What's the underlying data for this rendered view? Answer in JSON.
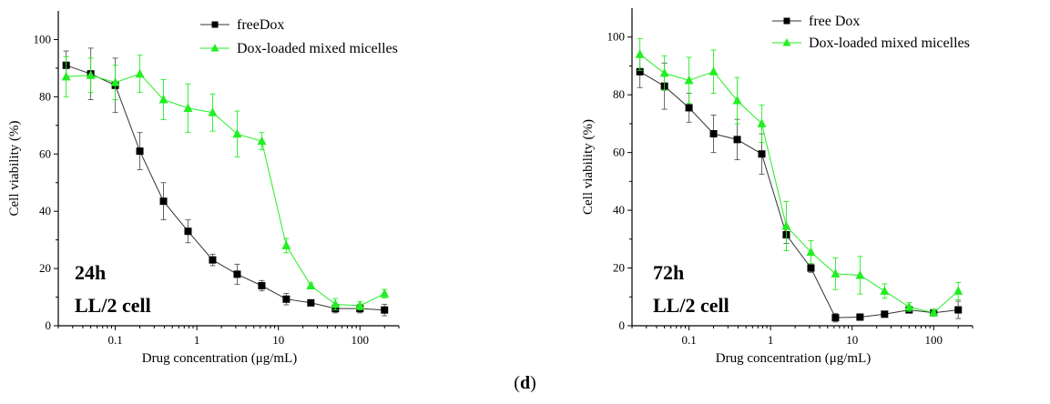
{
  "caption": "(d)",
  "chart_data": [
    {
      "type": "line",
      "xscale": "log",
      "xlim": [
        0.02,
        300
      ],
      "ylim": [
        0,
        110
      ],
      "xlabel": "Drug concentration (μg/mL)",
      "ylabel": "Cell viability (%)",
      "x_tick_labels": [
        "0.1",
        "1",
        "10",
        "100"
      ],
      "y_tick_labels": [
        "0",
        "20",
        "40",
        "60",
        "80",
        "100"
      ],
      "annotation": [
        "24h",
        "LL/2 cell"
      ],
      "legend_position": "top",
      "grid": false,
      "x": [
        0.025,
        0.05,
        0.1,
        0.2,
        0.39,
        0.78,
        1.56,
        3.125,
        6.25,
        12.5,
        25,
        50,
        100,
        200
      ],
      "series": [
        {
          "name": "freeDox",
          "color": "#000000",
          "marker": "square",
          "values": [
            91,
            88,
            84,
            61,
            43.5,
            33,
            23,
            18,
            14,
            9.3,
            8,
            6,
            6,
            5.5
          ],
          "errors": [
            5,
            9,
            9.5,
            6.5,
            6.5,
            4,
            2,
            3.5,
            1.8,
            2,
            1,
            1.5,
            1.5,
            2
          ]
        },
        {
          "name": "Dox-loaded mixed micelles",
          "color": "#22ee22",
          "marker": "triangle",
          "values": [
            87,
            87.5,
            85,
            88,
            79,
            76,
            74.5,
            67,
            64.5,
            28,
            14,
            7.5,
            7,
            11.2
          ],
          "errors": [
            7,
            6,
            6,
            6.5,
            7,
            8.5,
            6.5,
            8,
            3,
            2.5,
            1,
            2,
            1.5,
            1.5
          ]
        }
      ]
    },
    {
      "type": "line",
      "xscale": "log",
      "xlim": [
        0.02,
        300
      ],
      "ylim": [
        0,
        110
      ],
      "xlabel": "Drug concentration (μg/mL)",
      "ylabel": "Cell viability (%)",
      "x_tick_labels": [
        "0.1",
        "1",
        "10",
        "100"
      ],
      "y_tick_labels": [
        "0",
        "20",
        "40",
        "60",
        "80",
        "100"
      ],
      "annotation": [
        "72h",
        "LL/2 cell"
      ],
      "legend_position": "top-right",
      "grid": false,
      "x": [
        0.025,
        0.05,
        0.1,
        0.2,
        0.39,
        0.78,
        1.56,
        3.125,
        6.25,
        12.5,
        25,
        50,
        100,
        200
      ],
      "series": [
        {
          "name": "free Dox",
          "color": "#000000",
          "marker": "square",
          "values": [
            88,
            83,
            75.5,
            66.5,
            64.5,
            59.5,
            31.5,
            20,
            2.8,
            3,
            4,
            5.5,
            4.5,
            5.5
          ],
          "errors": [
            5.5,
            8,
            5,
            6.5,
            7,
            7,
            3,
            1.5,
            1.5,
            1,
            1,
            1,
            1,
            3
          ]
        },
        {
          "name": "Dox-loaded mixed micelles",
          "color": "#22ee22",
          "marker": "triangle",
          "values": [
            94,
            87.5,
            85,
            88,
            78,
            70,
            34.5,
            25.5,
            18,
            17.5,
            12,
            6.5,
            4.5,
            12
          ],
          "errors": [
            5.5,
            6,
            8,
            7.5,
            8,
            6.5,
            8.5,
            4,
            5.5,
            6.5,
            2.5,
            1.5,
            1,
            3
          ]
        }
      ]
    }
  ]
}
